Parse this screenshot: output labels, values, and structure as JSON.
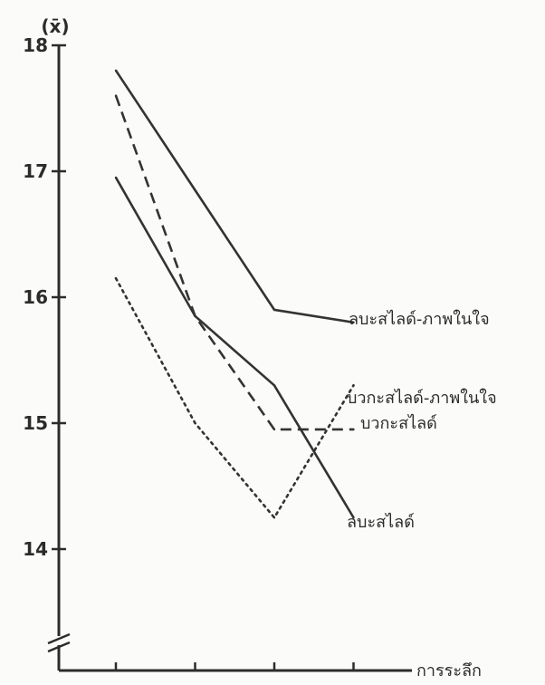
{
  "chart_data": {
    "type": "line",
    "title": "",
    "ylabel": "(x̄)",
    "xlabel": "การระลึก",
    "x": [
      1,
      2,
      3,
      4
    ],
    "ylim": [
      13.0,
      18.0
    ],
    "y_ticks": [
      14,
      15,
      16,
      17,
      18
    ],
    "y_tick_labels": [
      "14",
      "15",
      "16",
      "17",
      "18"
    ],
    "x_tick_labels": [
      "",
      "",
      "",
      ""
    ],
    "axis_break": true,
    "grid": false,
    "legend": "line-end labels",
    "series": [
      {
        "name": "ลบะสไลด์-ภาพในใจ",
        "values": [
          17.8,
          16.85,
          15.9,
          15.8
        ],
        "dash": "solid"
      },
      {
        "name": "บวกะสไลด์-ภาพในใจ",
        "values": [
          16.15,
          15.0,
          14.25,
          15.3
        ],
        "dash": "dotted"
      },
      {
        "name": "บวกะสไลด์",
        "values": [
          17.6,
          15.85,
          14.95,
          14.95
        ],
        "dash": "dashed"
      },
      {
        "name": "ลบะสไลด์",
        "values": [
          16.95,
          15.85,
          15.3,
          14.25
        ],
        "dash": "solid"
      }
    ]
  }
}
